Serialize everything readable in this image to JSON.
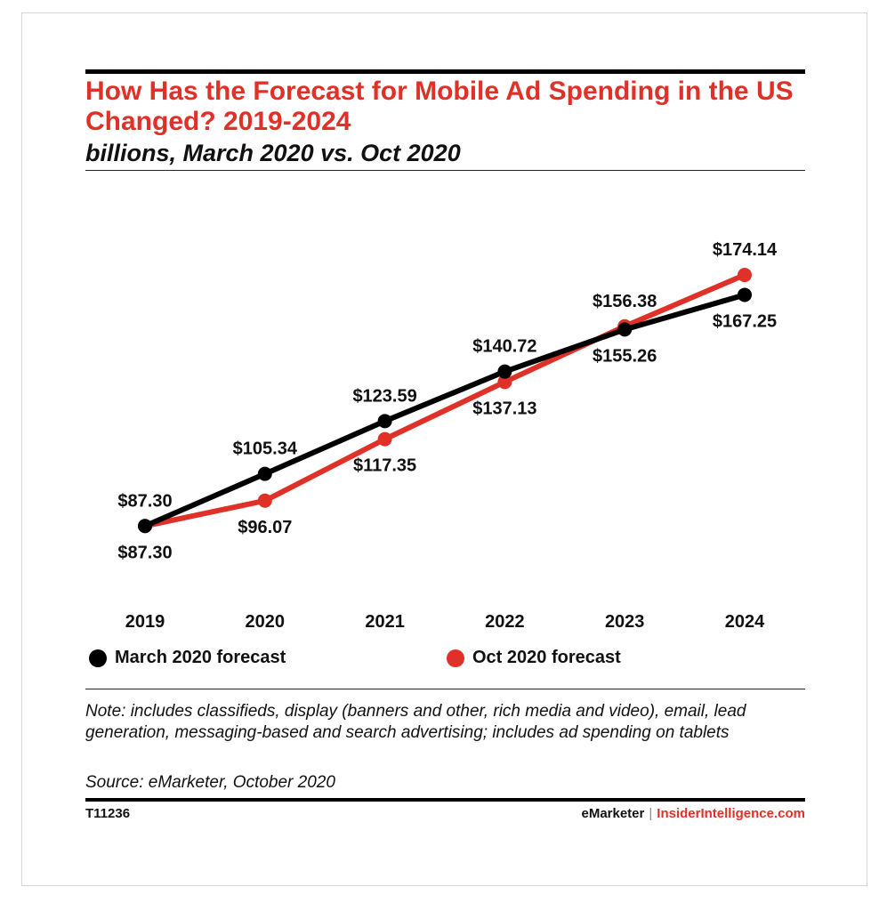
{
  "header": {
    "title": "How Has the Forecast for Mobile Ad Spending in the US Changed? 2019-2024",
    "subtitle": "billions, March 2020 vs. Oct 2020"
  },
  "colors": {
    "march": "#000000",
    "oct": "#e03128",
    "accent": "#e03128"
  },
  "chart_data": {
    "type": "line",
    "title": "How Has the Forecast for Mobile Ad Spending in the US Changed? 2019-2024",
    "subtitle": "billions, March 2020 vs. Oct 2020",
    "xlabel": "",
    "ylabel": "",
    "grid": false,
    "legend_position": "bottom",
    "categories": [
      "2019",
      "2020",
      "2021",
      "2022",
      "2023",
      "2024"
    ],
    "ylim": [
      80,
      180
    ],
    "series": [
      {
        "name": "March 2020 forecast",
        "color": "#000000",
        "values": [
          87.3,
          105.34,
          123.59,
          140.72,
          155.26,
          167.25
        ],
        "labels": [
          "$87.30",
          "$105.34",
          "$123.59",
          "$140.72",
          "$155.26",
          "$167.25"
        ]
      },
      {
        "name": "Oct 2020 forecast",
        "color": "#e03128",
        "values": [
          87.3,
          96.07,
          117.35,
          137.13,
          156.38,
          174.14
        ],
        "labels": [
          "$87.30",
          "$96.07",
          "$117.35",
          "$137.13",
          "$156.38",
          "$174.14"
        ]
      }
    ]
  },
  "legend": {
    "march": "March 2020 forecast",
    "oct": "Oct 2020 forecast"
  },
  "note": "Note: includes classifieds, display (banners and other, rich media and video), email, lead generation, messaging-based and search advertising; includes ad spending on tablets",
  "source": "Source: eMarketer, October 2020",
  "footer": {
    "id": "T11236",
    "brand_left": "eMarketer",
    "separator": "|",
    "brand_right": "InsiderIntelligence.com"
  }
}
